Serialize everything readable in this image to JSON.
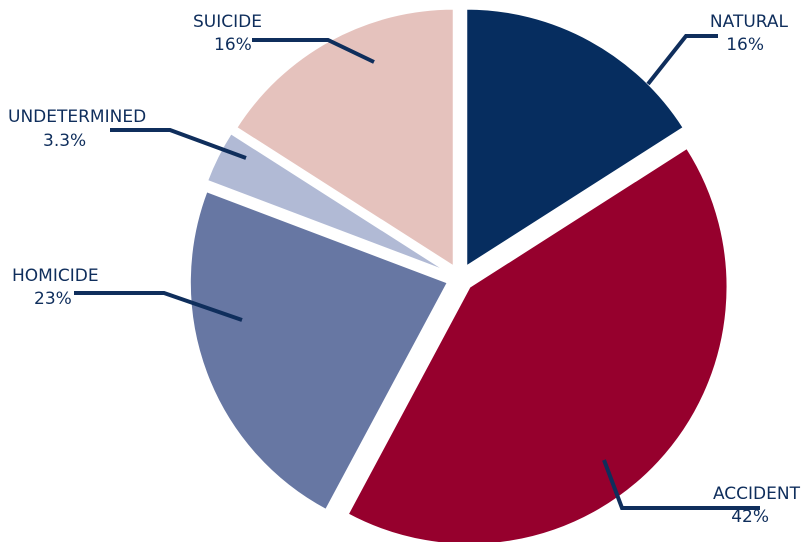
{
  "chart_data": {
    "type": "pie",
    "slices": [
      {
        "label": "NATURAL",
        "value_label": "16%",
        "value": 16,
        "color": "#062d5f"
      },
      {
        "label": "ACCIDENT",
        "value_label": "42%",
        "value": 42,
        "color": "#96002d"
      },
      {
        "label": "HOMICIDE",
        "value_label": "23%",
        "value": 23,
        "color": "#6777a3"
      },
      {
        "label": "UNDETERMINED",
        "value_label": "3.3%",
        "value": 3.3,
        "color": "#b1bad5"
      },
      {
        "label": "SUICIDE",
        "value_label": "16%",
        "value": 16,
        "color": "#e5c2bd"
      }
    ],
    "label_color": "#0f2e5c"
  }
}
